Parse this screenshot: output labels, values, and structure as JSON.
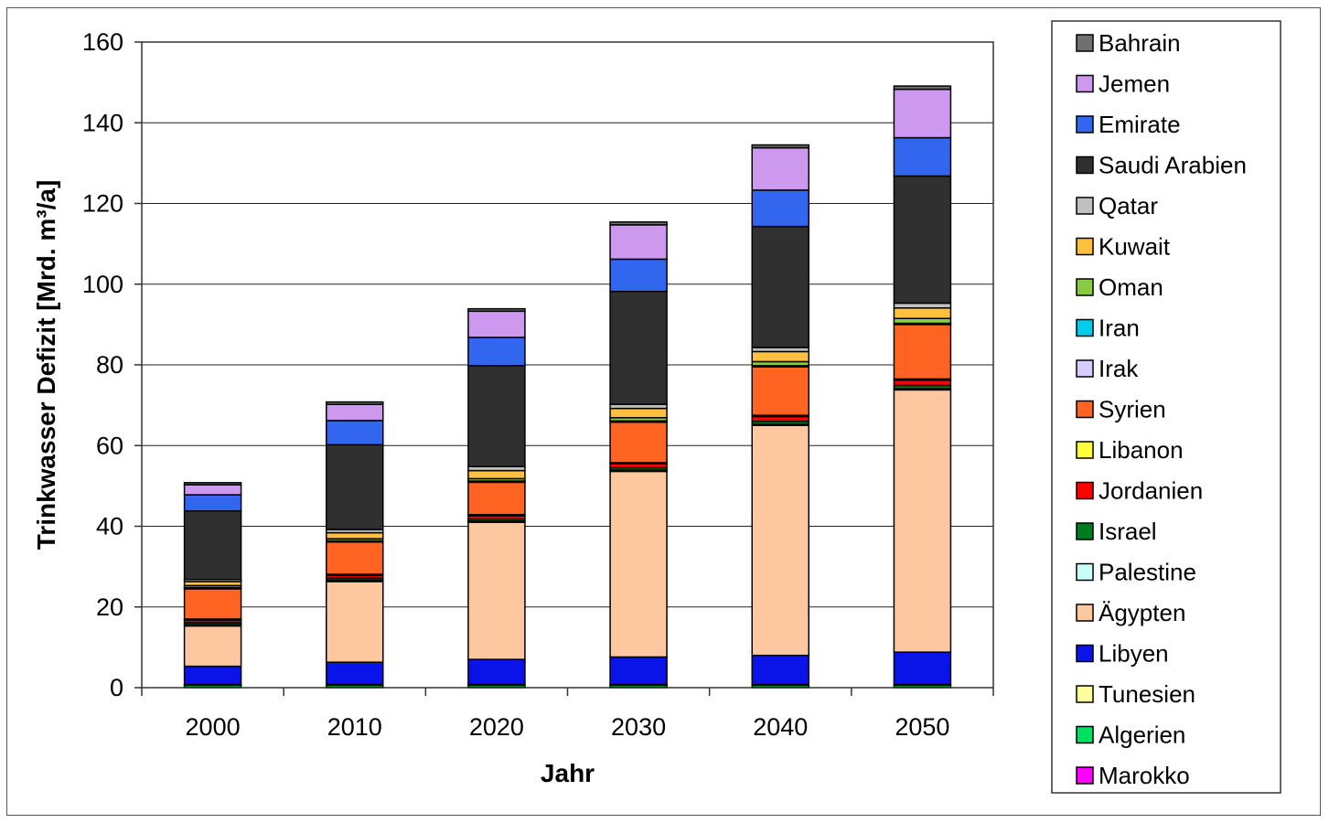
{
  "chart_data": {
    "type": "bar",
    "stacked": true,
    "xlabel": "Jahr",
    "ylabel": "Trinkwasser Defizit [Mrd. m³/a]",
    "ylim": [
      0,
      160
    ],
    "yticks": [
      0,
      20,
      40,
      60,
      80,
      100,
      120,
      140,
      160
    ],
    "grid": true,
    "legend_position": "right",
    "categories": [
      "2000",
      "2010",
      "2020",
      "2030",
      "2040",
      "2050"
    ],
    "series": [
      {
        "name": "Marokko",
        "color": "#ff00ff",
        "values": [
          0.1,
          0.1,
          0.1,
          0.1,
          0.1,
          0.1
        ]
      },
      {
        "name": "Algerien",
        "color": "#00e060",
        "values": [
          0.5,
          0.5,
          0.5,
          0.5,
          0.5,
          0.5
        ]
      },
      {
        "name": "Tunesien",
        "color": "#ffffa0",
        "values": [
          0.2,
          0.2,
          0.2,
          0.2,
          0.2,
          0.2
        ]
      },
      {
        "name": "Libyen",
        "color": "#0a14e8",
        "values": [
          4.5,
          5.5,
          6.2,
          6.8,
          7.2,
          8.0
        ]
      },
      {
        "name": "Ägypten",
        "color": "#fdc8a0",
        "values": [
          10.0,
          20.0,
          34.0,
          46.0,
          57.0,
          65.0
        ]
      },
      {
        "name": "Palestine",
        "color": "#c8fff8",
        "values": [
          0.3,
          0.3,
          0.3,
          0.3,
          0.3,
          0.3
        ]
      },
      {
        "name": "Israel",
        "color": "#007a1e",
        "values": [
          0.5,
          0.5,
          0.5,
          0.6,
          0.7,
          0.8
        ]
      },
      {
        "name": "Jordanien",
        "color": "#ff0000",
        "values": [
          0.6,
          0.7,
          0.8,
          1.0,
          1.2,
          1.3
        ]
      },
      {
        "name": "Libanon",
        "color": "#ffff40",
        "values": [
          0.3,
          0.3,
          0.3,
          0.3,
          0.3,
          0.3
        ]
      },
      {
        "name": "Syrien",
        "color": "#ff6422",
        "values": [
          7.5,
          8.0,
          8.0,
          10.0,
          12.0,
          13.5
        ]
      },
      {
        "name": "Irak",
        "color": "#d8ccff",
        "values": [
          0.2,
          0.2,
          0.2,
          0.2,
          0.2,
          0.2
        ]
      },
      {
        "name": "Iran",
        "color": "#00ccee",
        "values": [
          0.1,
          0.1,
          0.1,
          0.1,
          0.1,
          0.1
        ]
      },
      {
        "name": "Oman",
        "color": "#88cc44",
        "values": [
          0.5,
          0.5,
          0.6,
          0.8,
          1.0,
          1.2
        ]
      },
      {
        "name": "Kuwait",
        "color": "#ffc040",
        "values": [
          1.0,
          1.5,
          2.0,
          2.3,
          2.5,
          2.6
        ]
      },
      {
        "name": "Qatar",
        "color": "#c0c0c0",
        "values": [
          0.5,
          0.8,
          1.0,
          1.0,
          1.0,
          1.2
        ]
      },
      {
        "name": "Saudi Arabien",
        "color": "#303030",
        "values": [
          17.0,
          21.0,
          25.0,
          28.0,
          30.0,
          31.5
        ]
      },
      {
        "name": "Emirate",
        "color": "#3366ee",
        "values": [
          4.0,
          6.0,
          7.0,
          8.0,
          9.0,
          9.5
        ]
      },
      {
        "name": "Jemen",
        "color": "#cc99ee",
        "values": [
          2.5,
          4.0,
          6.5,
          8.5,
          10.5,
          12.0
        ]
      },
      {
        "name": "Bahrain",
        "color": "#707070",
        "values": [
          0.5,
          0.6,
          0.6,
          0.7,
          0.7,
          0.8
        ]
      }
    ]
  }
}
